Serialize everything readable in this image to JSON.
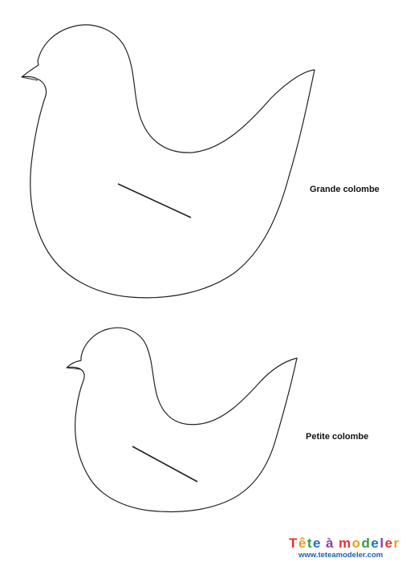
{
  "labels": {
    "large_dove": "Grande colombe",
    "small_dove": "Petite colombe"
  },
  "brand": {
    "name": "Tête à modeler",
    "url": "www.teteamodeler.com",
    "letter_colors": [
      "#e5322d",
      "#f39a1e",
      "#2f9e44",
      "#1f6fc5",
      "#8e3fa8",
      "#e5322d",
      "#f39a1e",
      "#2f9e44",
      "#1f6fc5",
      "#8e3fa8",
      "#e5322d",
      "#f39a1e",
      "#2f9e44",
      "#1f6fc5"
    ]
  },
  "colors": {
    "outline": "#222222",
    "text": "#111111",
    "url": "#1f5fb0"
  }
}
